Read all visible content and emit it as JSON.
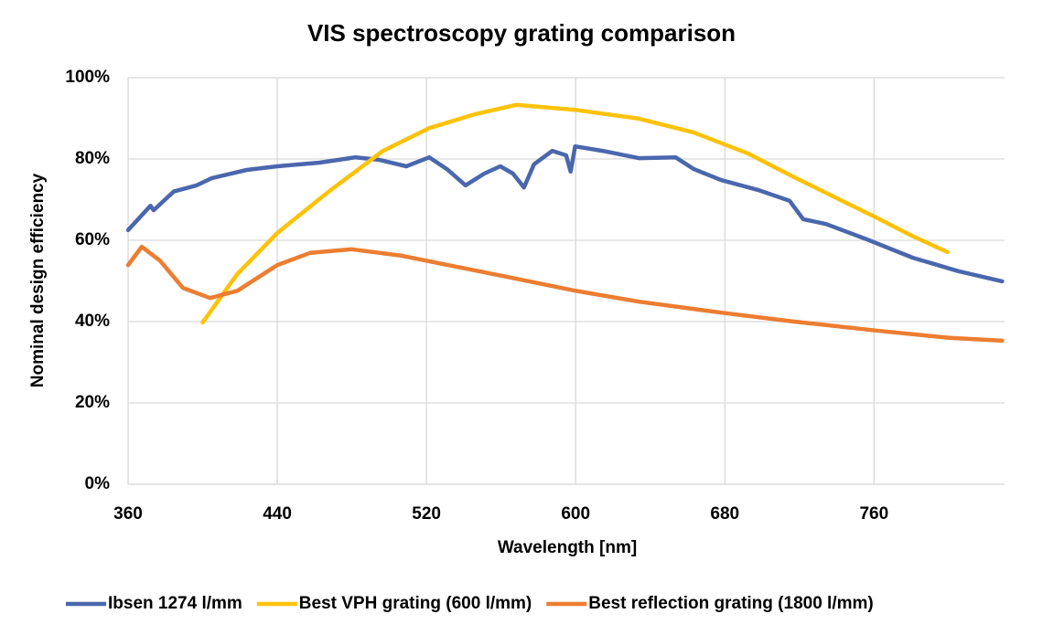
{
  "chart_data": {
    "type": "line",
    "title": "VIS spectroscopy grating comparison",
    "x_label": "Wavelength [nm]",
    "y_label": "Nominal design efficiency",
    "xlim": [
      360,
      830
    ],
    "xticks": [
      360,
      440,
      520,
      600,
      680,
      760
    ],
    "ylim": [
      0,
      100
    ],
    "yticks": [
      {
        "value": 0,
        "label": "0%"
      },
      {
        "value": 20,
        "label": "20%"
      },
      {
        "value": 40,
        "label": "40%"
      },
      {
        "value": 60,
        "label": "60%"
      },
      {
        "value": 80,
        "label": "80%"
      },
      {
        "value": 100,
        "label": "100%"
      }
    ],
    "grid": true,
    "legend": "bottom",
    "series": [
      {
        "name": "Ibsen 1274 l/mm",
        "color": "#4a67ad",
        "x": [
          360,
          372,
          373.7,
          384.5,
          396.7,
          405,
          423.6,
          440,
          462.7,
          482,
          494.6,
          509.2,
          521.5,
          531,
          541,
          551,
          559.6,
          566.4,
          572.3,
          577.7,
          587.5,
          594.9,
          597.3,
          599.7,
          614.4,
          633.9,
          653.6,
          663.4,
          678,
          697.6,
          714.7,
          722,
          734.3,
          756.3,
          780.8,
          805.2,
          828.7
        ],
        "values": [
          62.5,
          68.5,
          67.4,
          72,
          73.5,
          75.3,
          77.3,
          78.2,
          79.1,
          80.4,
          79.8,
          78.2,
          80.4,
          77.5,
          73.5,
          76.4,
          78.2,
          76.4,
          73,
          78.7,
          82,
          80.9,
          76.9,
          83.1,
          82,
          80.2,
          80.4,
          77.5,
          74.8,
          72.4,
          69.7,
          65.2,
          64,
          60.2,
          55.7,
          52.4,
          49.9
        ]
      },
      {
        "name": "Best VPH grating (600 l/mm)",
        "color": "#fdc20a",
        "x": [
          400,
          418.6,
          440,
          467.4,
          496.7,
          521.5,
          545.9,
          568,
          599.7,
          634,
          663.4,
          692.7,
          717.2,
          741.6,
          761.2,
          780.8,
          799.4
        ],
        "values": [
          39.8,
          51.7,
          61.8,
          71.9,
          82,
          87.6,
          91,
          93.3,
          92.1,
          89.9,
          86.5,
          81.3,
          75.5,
          70,
          65.6,
          61,
          57.1
        ]
      },
      {
        "name": "Best reflection grating (1800 l/mm)",
        "color": "#ed7d31",
        "x": [
          360,
          367.3,
          377.1,
          389.4,
          404,
          418.7,
          440,
          457.6,
          479.8,
          506.8,
          536,
          565.4,
          599.7,
          634,
          678,
          717.2,
          761.2,
          800.4,
          828.7
        ],
        "values": [
          53.9,
          58.4,
          55,
          48.3,
          45.8,
          47.6,
          53.9,
          56.9,
          57.8,
          56.2,
          53.5,
          50.8,
          47.6,
          44.9,
          42.2,
          40,
          37.8,
          36,
          35.3
        ]
      }
    ]
  }
}
